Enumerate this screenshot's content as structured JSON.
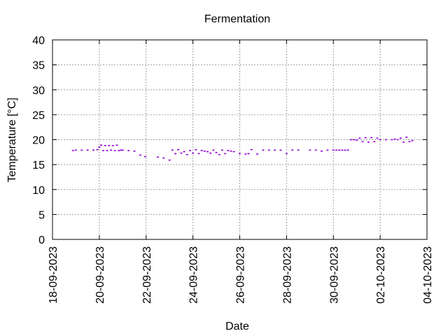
{
  "chart_data": {
    "type": "scatter",
    "title": "Fermentation",
    "xlabel": "Date",
    "ylabel": "Temperature [°C]",
    "xlim": [
      "18-09-2023",
      "04-10-2023"
    ],
    "ylim": [
      0,
      40
    ],
    "x_ticks": [
      "18-09-2023",
      "20-09-2023",
      "22-09-2023",
      "24-09-2023",
      "26-09-2023",
      "28-09-2023",
      "30-09-2023",
      "02-10-2023",
      "04-10-2023"
    ],
    "y_ticks": [
      0,
      5,
      10,
      15,
      20,
      25,
      30,
      35,
      40
    ],
    "grid": true,
    "point_color": "#9400d3",
    "series": [
      {
        "x": [
          "2023-09-18 21:00",
          "2023-09-19 00:00",
          "2023-09-19 06:00",
          "2023-09-19 12:00",
          "2023-09-19 18:00",
          "2023-09-19 22:00",
          "2023-09-20 00:00",
          "2023-09-20 02:00",
          "2023-09-20 04:00",
          "2023-09-20 06:00",
          "2023-09-20 08:00",
          "2023-09-20 10:00",
          "2023-09-20 12:00",
          "2023-09-20 14:00",
          "2023-09-20 16:00",
          "2023-09-20 18:00",
          "2023-09-20 20:00",
          "2023-09-20 22:00",
          "2023-09-21 00:00",
          "2023-09-21 06:00",
          "2023-09-21 12:00",
          "2023-09-21 18:00",
          "2023-09-21 23:00",
          "2023-09-22 12:00",
          "2023-09-22 18:00",
          "2023-09-23 00:00",
          "2023-09-23 03:00",
          "2023-09-23 06:00",
          "2023-09-23 09:00",
          "2023-09-23 12:00",
          "2023-09-23 15:00",
          "2023-09-23 18:00",
          "2023-09-23 21:00",
          "2023-09-24 00:00",
          "2023-09-24 03:00",
          "2023-09-24 06:00",
          "2023-09-24 09:00",
          "2023-09-24 12:00",
          "2023-09-24 15:00",
          "2023-09-24 18:00",
          "2023-09-24 21:00",
          "2023-09-25 00:00",
          "2023-09-25 03:00",
          "2023-09-25 06:00",
          "2023-09-25 09:00",
          "2023-09-25 12:00",
          "2023-09-25 15:00",
          "2023-09-25 18:00",
          "2023-09-26 00:00",
          "2023-09-26 06:00",
          "2023-09-26 09:00",
          "2023-09-26 12:00",
          "2023-09-26 18:00",
          "2023-09-27 00:00",
          "2023-09-27 06:00",
          "2023-09-27 12:00",
          "2023-09-27 18:00",
          "2023-09-28 00:00",
          "2023-09-28 06:00",
          "2023-09-28 12:00",
          "2023-09-29 00:00",
          "2023-09-29 06:00",
          "2023-09-29 12:00",
          "2023-09-29 18:00",
          "2023-09-30 00:00",
          "2023-09-30 03:00",
          "2023-09-30 06:00",
          "2023-09-30 09:00",
          "2023-09-30 12:00",
          "2023-09-30 15:00",
          "2023-09-30 18:00",
          "2023-09-30 21:00",
          "2023-10-01 00:00",
          "2023-10-01 03:00",
          "2023-10-01 06:00",
          "2023-10-01 09:00",
          "2023-10-01 12:00",
          "2023-10-01 15:00",
          "2023-10-01 18:00",
          "2023-10-01 21:00",
          "2023-10-02 00:00",
          "2023-10-02 06:00",
          "2023-10-02 12:00",
          "2023-10-02 15:00",
          "2023-10-02 18:00",
          "2023-10-02 21:00",
          "2023-10-03 00:00",
          "2023-10-03 03:00",
          "2023-10-03 06:00",
          "2023-10-03 09:00"
        ],
        "y": [
          17.8,
          17.9,
          17.9,
          17.9,
          17.9,
          18.0,
          18.5,
          18.9,
          17.8,
          18.8,
          17.8,
          18.8,
          17.9,
          18.8,
          17.8,
          18.9,
          17.8,
          17.9,
          17.9,
          17.8,
          17.7,
          16.9,
          16.6,
          16.5,
          16.3,
          15.9,
          17.9,
          17.2,
          18.0,
          17.3,
          17.6,
          17.0,
          17.8,
          17.3,
          18.0,
          17.2,
          17.8,
          17.7,
          17.6,
          17.3,
          17.9,
          17.4,
          17.0,
          17.9,
          17.2,
          17.8,
          17.7,
          17.6,
          17.2,
          17.1,
          17.2,
          18.0,
          17.1,
          17.9,
          17.9,
          17.9,
          17.9,
          17.2,
          17.9,
          17.9,
          17.9,
          17.9,
          17.7,
          17.9,
          17.9,
          17.9,
          17.9,
          17.9,
          17.9,
          17.9,
          20.0,
          20.0,
          19.9,
          20.3,
          19.6,
          20.4,
          19.5,
          20.4,
          19.6,
          20.3,
          20.0,
          20.0,
          20.0,
          20.1,
          20.0,
          20.3,
          19.5,
          20.5,
          19.6,
          19.8
        ]
      }
    ]
  }
}
